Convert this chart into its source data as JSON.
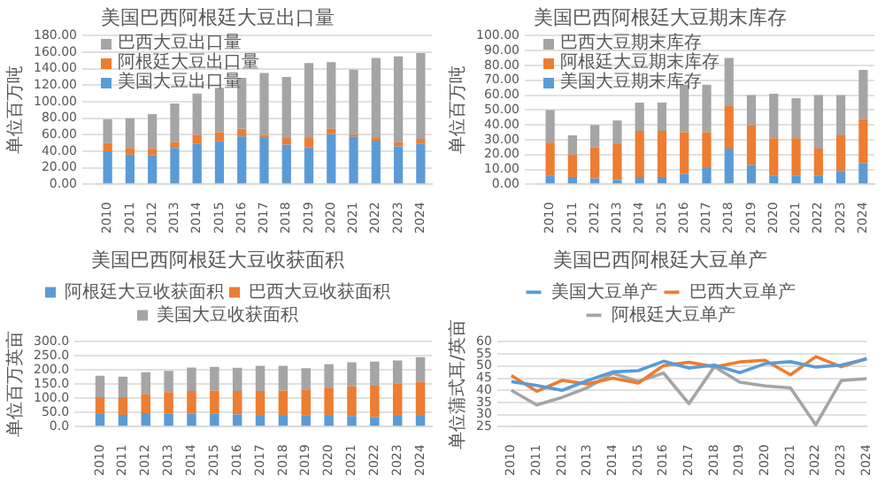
{
  "chart_data": [
    {
      "type": "bar",
      "title": "美国巴西阿根廷大豆出口量",
      "ylabel": "单位百万吨",
      "stacked": true,
      "legend": "top left",
      "grid": "y",
      "categories": [
        "2010",
        "2011",
        "2012",
        "2013",
        "2014",
        "2015",
        "2016",
        "2017",
        "2018",
        "2019",
        "2020",
        "2021",
        "2022",
        "2023",
        "2024"
      ],
      "ylim": [
        0,
        180
      ],
      "yticks": [
        {
          "value": 0,
          "label": "0.00"
        },
        {
          "value": 20,
          "label": "20.00"
        },
        {
          "value": 40,
          "label": "40.00"
        },
        {
          "value": 60,
          "label": "60.00"
        },
        {
          "value": 80,
          "label": "80.00"
        },
        {
          "value": 100,
          "label": "100.00"
        },
        {
          "value": 120,
          "label": "120.00"
        },
        {
          "value": 140,
          "label": "140.00"
        },
        {
          "value": 160,
          "label": "160.00"
        },
        {
          "value": 180,
          "label": "180.00"
        }
      ],
      "series": [
        {
          "name": "美国大豆出口量",
          "color": "#5b9bd5",
          "values": [
            40,
            36,
            35,
            44,
            49,
            52,
            58,
            56,
            48,
            45,
            61,
            58,
            53,
            46,
            49
          ]
        },
        {
          "name": "阿根廷大豆出口量",
          "color": "#ed7d31",
          "values": [
            10,
            8,
            8,
            7,
            11,
            11,
            9,
            4,
            9,
            11,
            6,
            3,
            4,
            5,
            6
          ]
        },
        {
          "name": "巴西大豆出口量",
          "color": "#a5a5a5",
          "values": [
            29,
            36,
            42,
            47,
            50,
            54,
            62,
            75,
            73,
            91,
            81,
            78,
            96,
            104,
            104
          ]
        }
      ]
    },
    {
      "type": "bar",
      "title": "美国巴西阿根廷大豆期末库存",
      "ylabel": "单位百万吨",
      "stacked": true,
      "legend": "top left",
      "grid": "y",
      "categories": [
        "2010",
        "2011",
        "2012",
        "2013",
        "2014",
        "2015",
        "2016",
        "2017",
        "2018",
        "2019",
        "2020",
        "2021",
        "2022",
        "2023",
        "2024"
      ],
      "ylim": [
        0,
        100
      ],
      "yticks": [
        {
          "value": 0,
          "label": "0.00"
        },
        {
          "value": 10,
          "label": "10.00"
        },
        {
          "value": 20,
          "label": "20.00"
        },
        {
          "value": 30,
          "label": "30.00"
        },
        {
          "value": 40,
          "label": "40.00"
        },
        {
          "value": 50,
          "label": "50.00"
        },
        {
          "value": 60,
          "label": "60.00"
        },
        {
          "value": 70,
          "label": "70.00"
        },
        {
          "value": 80,
          "label": "80.00"
        },
        {
          "value": 90,
          "label": "90.00"
        },
        {
          "value": 100,
          "label": "100.00"
        }
      ],
      "series": [
        {
          "name": "美国大豆期末库存",
          "color": "#5b9bd5",
          "values": [
            6,
            5,
            4,
            3,
            5,
            5,
            7,
            11,
            24,
            13,
            6,
            6,
            6,
            9,
            14
          ]
        },
        {
          "name": "阿根廷大豆期末库存",
          "color": "#ed7d31",
          "values": [
            22,
            15,
            21,
            24,
            31,
            31,
            28,
            24,
            29,
            27,
            25,
            25,
            18,
            24,
            30
          ]
        },
        {
          "name": "巴西大豆期末库存",
          "color": "#a5a5a5",
          "values": [
            22,
            13,
            15,
            16,
            19,
            19,
            32,
            32,
            32,
            20,
            30,
            27,
            36,
            27,
            33
          ]
        }
      ]
    },
    {
      "type": "bar",
      "title": "美国巴西阿根廷大豆收获面积",
      "ylabel": "单位百万英亩",
      "stacked": true,
      "legend": "top",
      "grid": "y",
      "categories": [
        "2010",
        "2011",
        "2012",
        "2013",
        "2014",
        "2015",
        "2016",
        "2017",
        "2018",
        "2019",
        "2020",
        "2021",
        "2022",
        "2023",
        "2024"
      ],
      "ylim": [
        0,
        300
      ],
      "yticks": [
        {
          "value": 0,
          "label": "0.0"
        },
        {
          "value": 50,
          "label": "50.0"
        },
        {
          "value": 100,
          "label": "100.0"
        },
        {
          "value": 150,
          "label": "150.0"
        },
        {
          "value": 200,
          "label": "200.0"
        },
        {
          "value": 250,
          "label": "250.0"
        },
        {
          "value": 300,
          "label": "300.0"
        }
      ],
      "series": [
        {
          "name": "阿根廷大豆收获面积",
          "color": "#5b9bd5",
          "values": [
            45,
            42,
            48,
            47,
            47,
            47,
            43,
            39,
            39,
            41,
            39,
            38,
            34,
            39,
            39
          ]
        },
        {
          "name": "巴西大豆收获面积",
          "color": "#ed7d31",
          "values": [
            59,
            62,
            68,
            75,
            79,
            81,
            83,
            87,
            89,
            91,
            99,
            105,
            111,
            113,
            119
          ]
        },
        {
          "name": "美国大豆收获面积",
          "color": "#a5a5a5",
          "values": [
            76,
            73,
            77,
            75,
            83,
            83,
            82,
            89,
            87,
            75,
            83,
            85,
            85,
            82,
            88
          ]
        }
      ]
    },
    {
      "type": "line",
      "title": "美国巴西阿根廷大豆单产",
      "ylabel": "单位蒲式耳/英亩",
      "legend": "top",
      "grid": "y",
      "categories": [
        "2010",
        "2011",
        "2012",
        "2013",
        "2014",
        "2015",
        "2016",
        "2017",
        "2018",
        "2019",
        "2020",
        "2021",
        "2022",
        "2023",
        "2024"
      ],
      "ylim": [
        25,
        60
      ],
      "yticks": [
        25,
        30,
        35,
        40,
        45,
        50,
        55,
        60
      ],
      "series": [
        {
          "name": "美国大豆单产",
          "color": "#5b9bd5",
          "values": [
            43.6,
            42,
            40,
            44,
            47.6,
            48.1,
            52,
            49.2,
            50.4,
            47.3,
            51,
            51.8,
            49.6,
            50.4,
            52.9
          ]
        },
        {
          "name": "巴西大豆单产",
          "color": "#ed7d31",
          "values": [
            46.1,
            39.6,
            44.1,
            42.6,
            45,
            43,
            50.2,
            51.6,
            49.7,
            51.7,
            52.4,
            46.4,
            53.9,
            49.7,
            53.1
          ]
        },
        {
          "name": "阿根廷大豆单产",
          "color": "#a5a5a5",
          "values": [
            40,
            34,
            37.1,
            41.1,
            47,
            43.7,
            47.1,
            34.5,
            49.8,
            43.4,
            41.8,
            41,
            25.8,
            44,
            44.8
          ]
        }
      ]
    }
  ]
}
